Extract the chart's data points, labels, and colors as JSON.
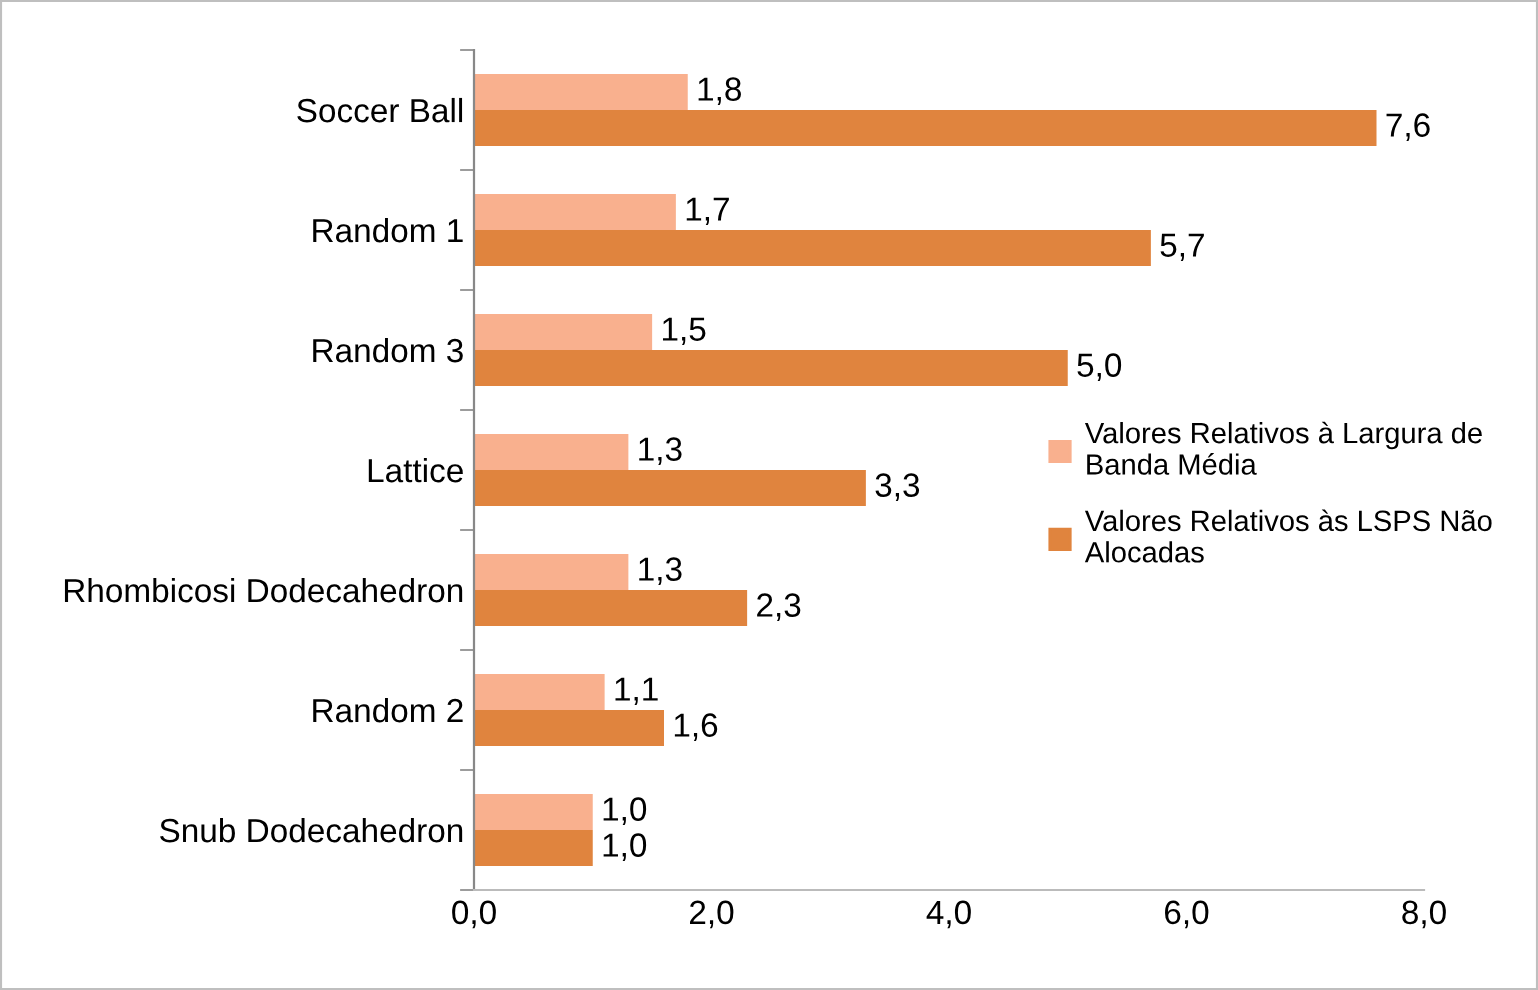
{
  "chart_data": {
    "type": "bar",
    "orientation": "horizontal",
    "categories": [
      "Soccer Ball",
      "Random 1",
      "Random 3",
      "Lattice",
      "Rhombicosi Dodecahedron",
      "Random 2",
      "Snub Dodecahedron"
    ],
    "series": [
      {
        "name": "Valores Relativos à Largura de\nBanda Média",
        "color": "#f9b08e",
        "values": [
          1.8,
          1.7,
          1.5,
          1.3,
          1.3,
          1.1,
          1.0
        ],
        "value_labels": [
          "1,8",
          "1,7",
          "1,5",
          "1,3",
          "1,3",
          "1,1",
          "1,0"
        ]
      },
      {
        "name": "Valores Relativos às LSPS Não\nAlocadas",
        "color": "#e0843e",
        "values": [
          7.6,
          5.7,
          5.0,
          3.3,
          2.3,
          1.6,
          1.0
        ],
        "value_labels": [
          "7,6",
          "5,7",
          "5,0",
          "3,3",
          "2,3",
          "1,6",
          "1,0"
        ]
      }
    ],
    "xlim": [
      0,
      8
    ],
    "xticks": [
      {
        "value": 0,
        "label": "0,0"
      },
      {
        "value": 2,
        "label": "2,0"
      },
      {
        "value": 4,
        "label": "4,0"
      },
      {
        "value": 6,
        "label": "6,0"
      },
      {
        "value": 8,
        "label": "8,0"
      }
    ],
    "grid": false,
    "legend": "right"
  }
}
